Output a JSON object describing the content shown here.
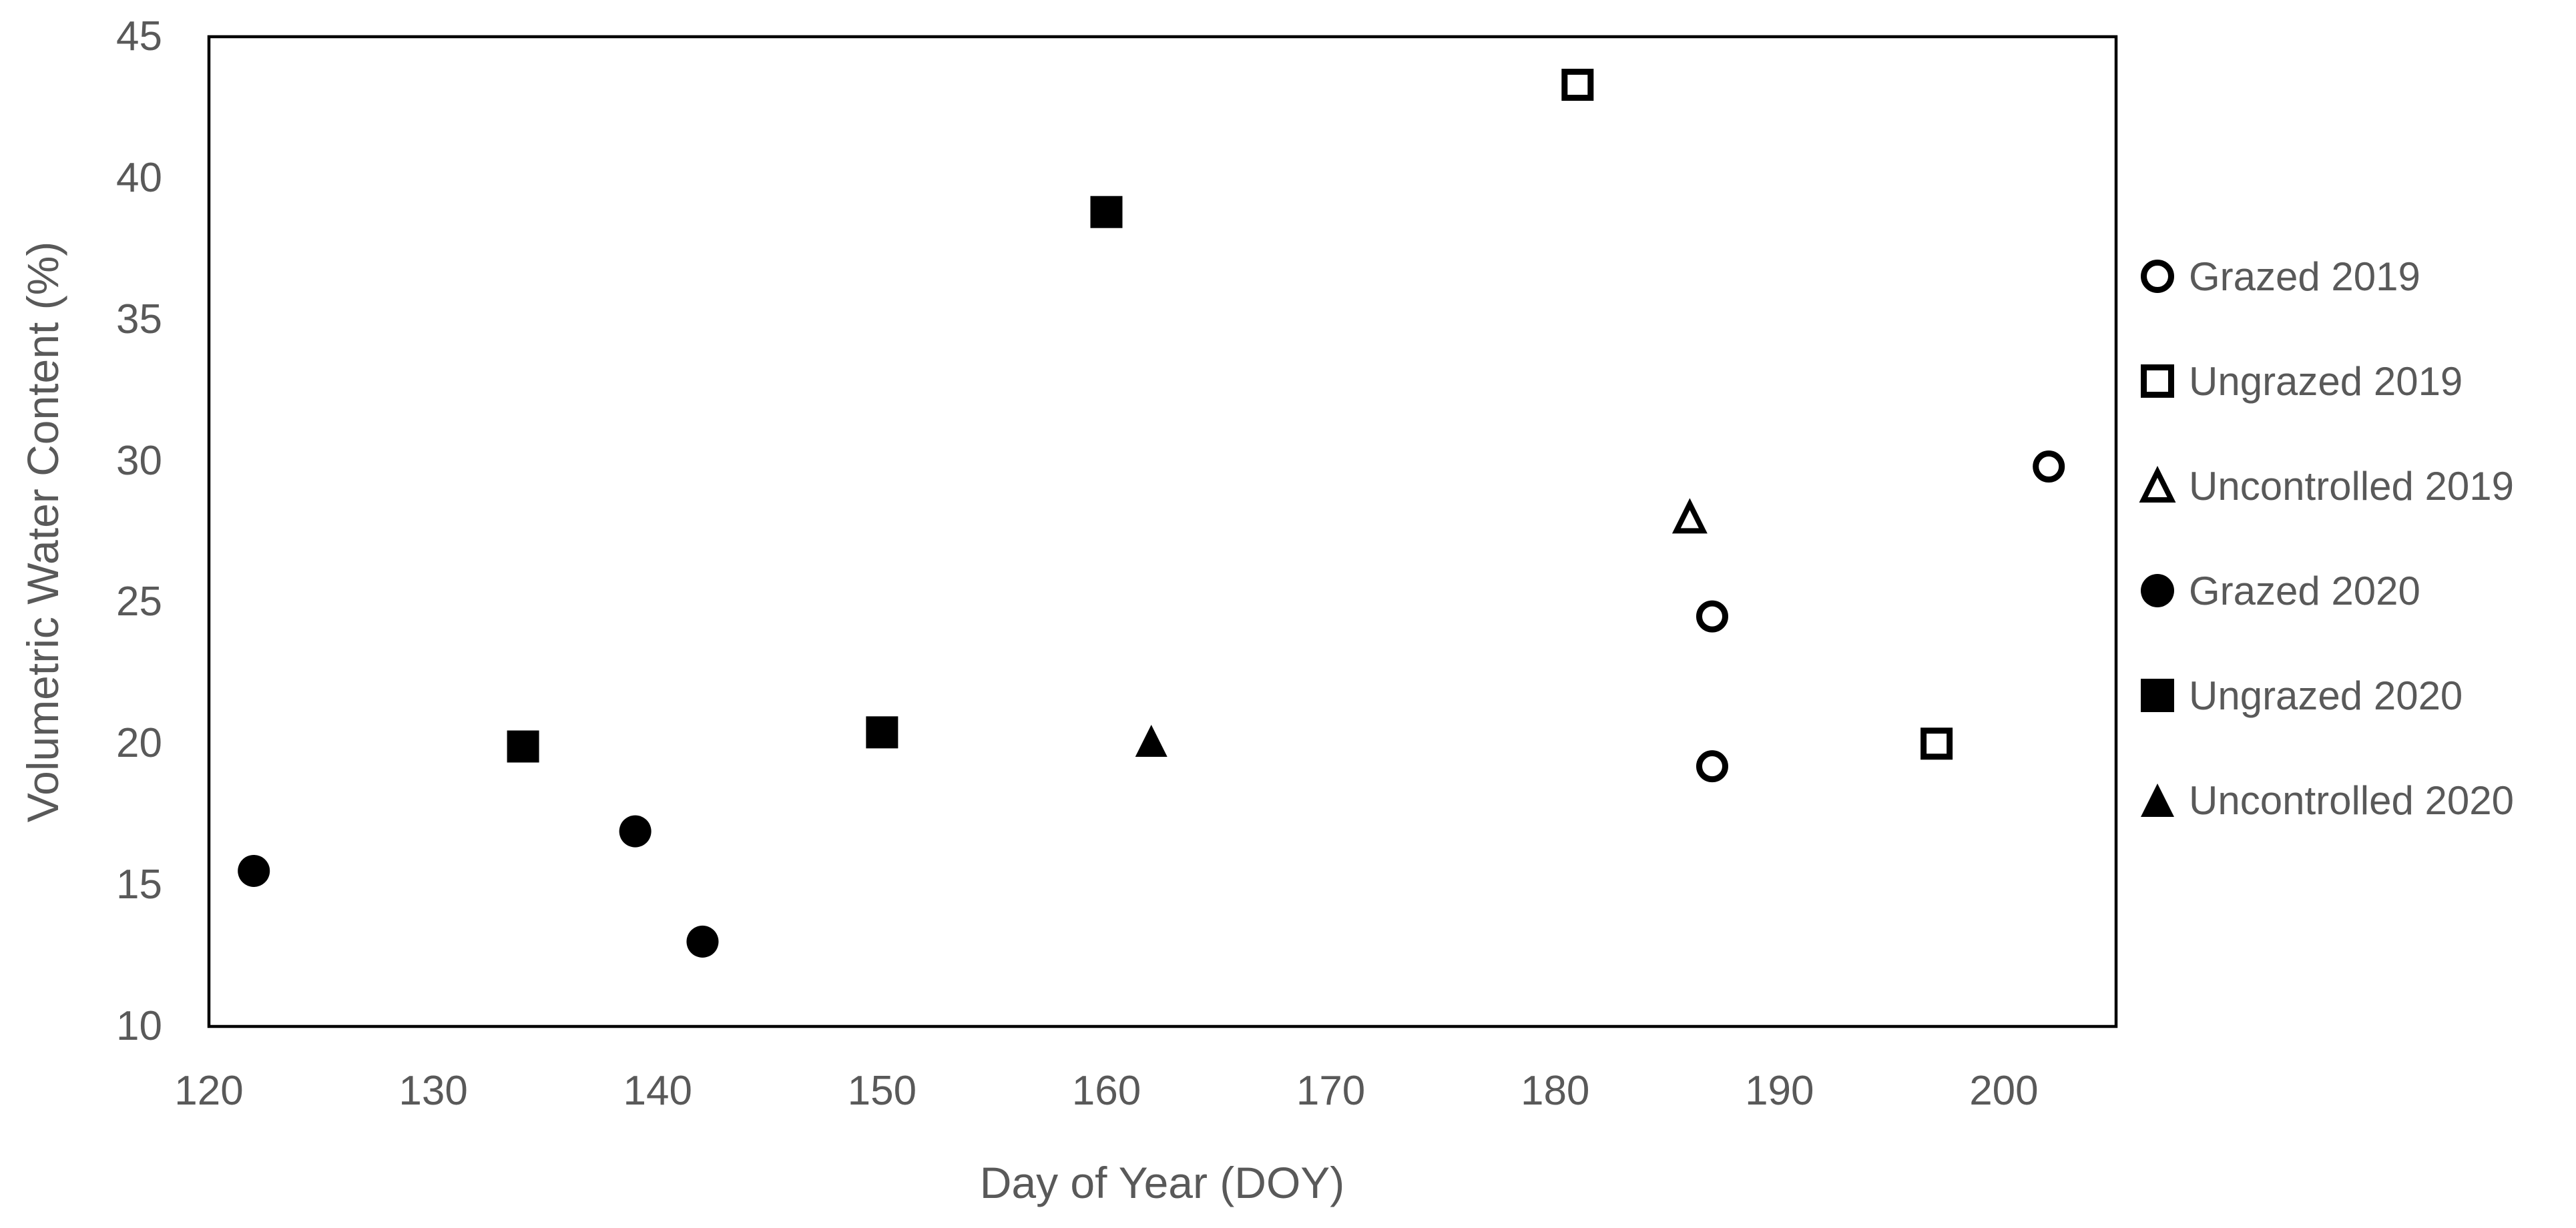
{
  "figure": {
    "background_color": "#ffffff",
    "text_color": "#595959",
    "marker_color": "#000000",
    "frame_color": "#000000"
  },
  "chart_data": {
    "type": "scatter",
    "title": "",
    "xlabel": "Day of Year (DOY)",
    "ylabel": "Volumetric Water Content (%)",
    "x_axis": {
      "min": 120,
      "max": 205,
      "ticks": [
        120,
        130,
        140,
        150,
        160,
        170,
        180,
        190,
        200
      ]
    },
    "y_axis": {
      "min": 10,
      "max": 45,
      "ticks": [
        10,
        15,
        20,
        25,
        30,
        35,
        40,
        45
      ]
    },
    "grid": false,
    "legend_position": "right-outside",
    "series": [
      {
        "name": "Grazed 2019",
        "marker": "circle-open",
        "points": [
          [
            187,
            24.5
          ],
          [
            187,
            19.2
          ],
          [
            202,
            29.8
          ]
        ]
      },
      {
        "name": "Ungrazed 2019",
        "marker": "square-open",
        "points": [
          [
            181,
            43.3
          ],
          [
            197,
            20.0
          ]
        ]
      },
      {
        "name": "Uncontrolled 2019",
        "marker": "triangle-open",
        "points": [
          [
            186,
            28.0
          ]
        ]
      },
      {
        "name": "Grazed 2020",
        "marker": "circle-filled",
        "points": [
          [
            122,
            15.5
          ],
          [
            139,
            16.9
          ],
          [
            142,
            13.0
          ]
        ]
      },
      {
        "name": "Ungrazed 2020",
        "marker": "square-filled",
        "points": [
          [
            134,
            19.9
          ],
          [
            150,
            20.4
          ],
          [
            160,
            38.8
          ]
        ]
      },
      {
        "name": "Uncontrolled 2020",
        "marker": "triangle-filled",
        "points": [
          [
            162,
            20.1
          ]
        ]
      }
    ]
  }
}
